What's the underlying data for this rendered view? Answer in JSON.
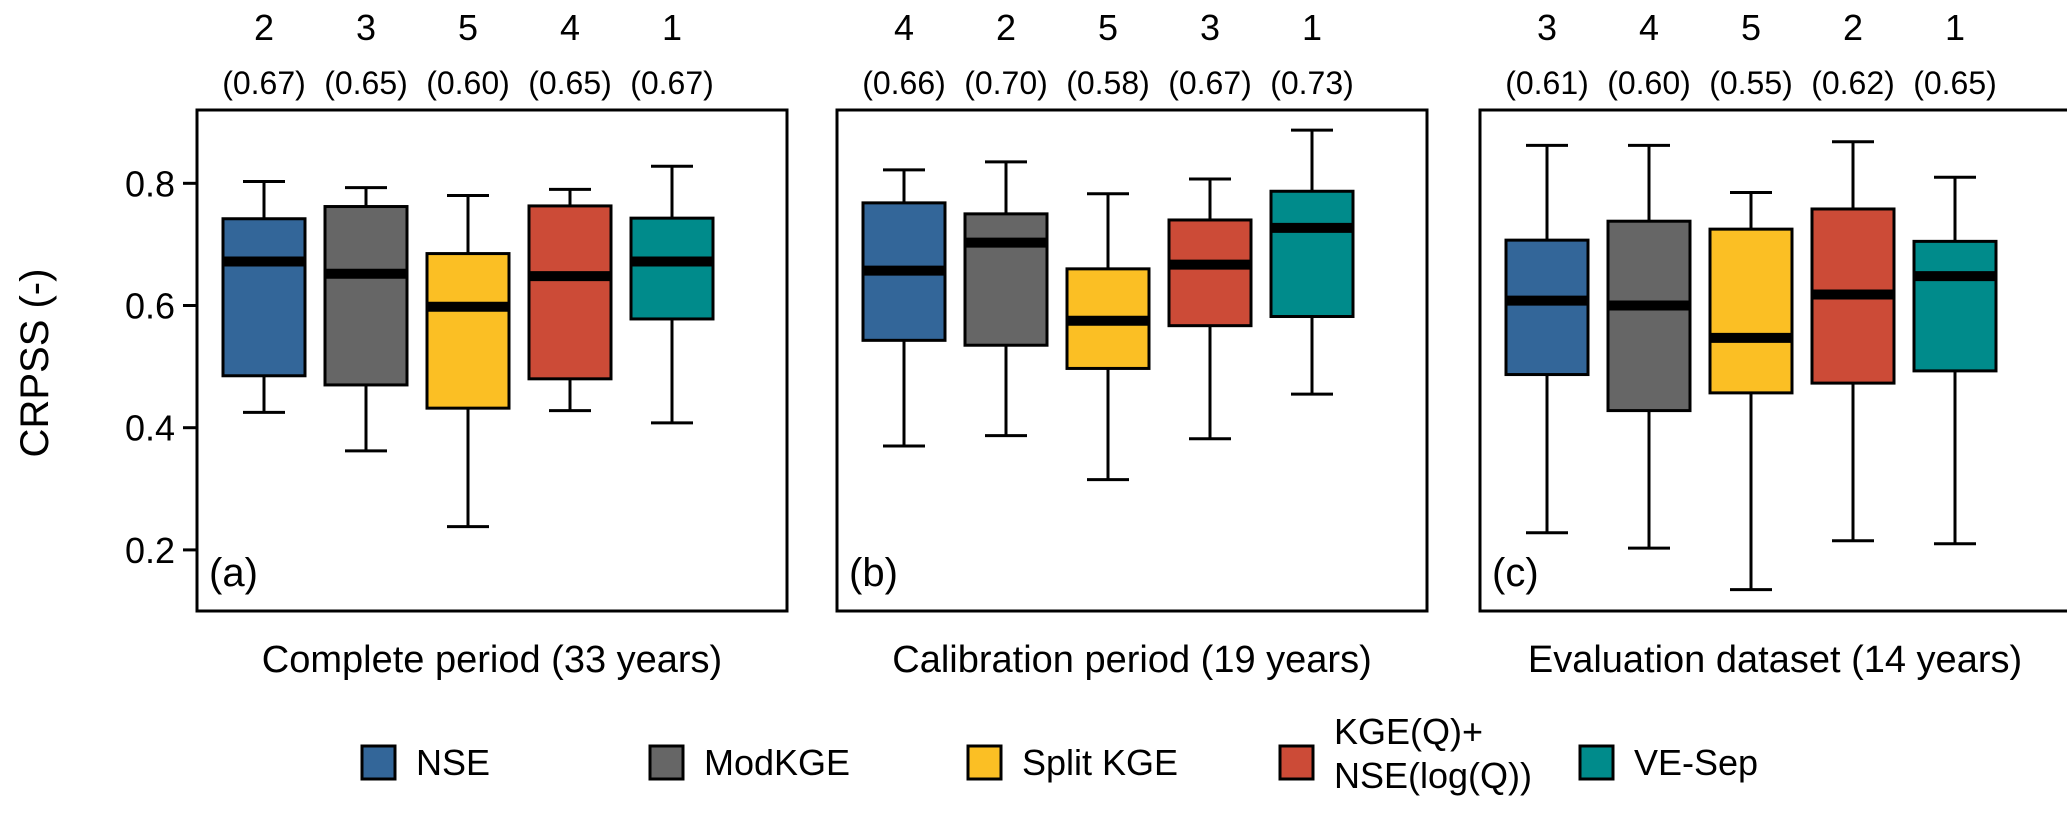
{
  "ylabel": "CRPSS (-)",
  "legend": [
    {
      "label": "NSE",
      "color": "#336699"
    },
    {
      "label": "ModKGE",
      "color": "#666666"
    },
    {
      "label": "Split KGE",
      "color": "#FBBF24"
    },
    {
      "label": "KGE(Q)+\nNSE(log(Q))",
      "color": "#CC4B37"
    },
    {
      "label": "VE-Sep",
      "color": "#008B8B"
    }
  ],
  "chart_data": [
    {
      "type": "boxplot",
      "panel_tag": "(a)",
      "xlabel": "Complete period (33 years)",
      "ylabel": "CRPSS (-)",
      "ylim": [
        0.1,
        0.92
      ],
      "yticks": [
        0.2,
        0.4,
        0.6,
        0.8
      ],
      "categories": [
        "NSE",
        "ModKGE",
        "Split KGE",
        "KGE(Q)+NSE(log(Q))",
        "VE-Sep"
      ],
      "ranks": [
        "2",
        "3",
        "5",
        "4",
        "1"
      ],
      "medians_label": [
        "(0.67)",
        "(0.65)",
        "(0.60)",
        "(0.65)",
        "(0.67)"
      ],
      "boxes": [
        {
          "min": 0.425,
          "q1": 0.485,
          "median": 0.672,
          "q3": 0.742,
          "max": 0.803
        },
        {
          "min": 0.362,
          "q1": 0.47,
          "median": 0.652,
          "q3": 0.762,
          "max": 0.793
        },
        {
          "min": 0.238,
          "q1": 0.432,
          "median": 0.598,
          "q3": 0.685,
          "max": 0.78
        },
        {
          "min": 0.428,
          "q1": 0.48,
          "median": 0.648,
          "q3": 0.763,
          "max": 0.79
        },
        {
          "min": 0.408,
          "q1": 0.578,
          "median": 0.672,
          "q3": 0.743,
          "max": 0.828
        }
      ]
    },
    {
      "type": "boxplot",
      "panel_tag": "(b)",
      "xlabel": "Calibration period (19 years)",
      "ylabel": "CRPSS (-)",
      "ylim": [
        0.1,
        0.92
      ],
      "yticks": [
        0.2,
        0.4,
        0.6,
        0.8
      ],
      "categories": [
        "NSE",
        "ModKGE",
        "Split KGE",
        "KGE(Q)+NSE(log(Q))",
        "VE-Sep"
      ],
      "ranks": [
        "4",
        "2",
        "5",
        "3",
        "1"
      ],
      "medians_label": [
        "(0.66)",
        "(0.70)",
        "(0.58)",
        "(0.67)",
        "(0.73)"
      ],
      "boxes": [
        {
          "min": 0.37,
          "q1": 0.543,
          "median": 0.657,
          "q3": 0.768,
          "max": 0.822
        },
        {
          "min": 0.387,
          "q1": 0.535,
          "median": 0.703,
          "q3": 0.75,
          "max": 0.835
        },
        {
          "min": 0.315,
          "q1": 0.497,
          "median": 0.575,
          "q3": 0.66,
          "max": 0.783
        },
        {
          "min": 0.382,
          "q1": 0.567,
          "median": 0.667,
          "q3": 0.74,
          "max": 0.807
        },
        {
          "min": 0.455,
          "q1": 0.582,
          "median": 0.727,
          "q3": 0.787,
          "max": 0.887
        }
      ]
    },
    {
      "type": "boxplot",
      "panel_tag": "(c)",
      "xlabel": "Evaluation dataset (14 years)",
      "ylabel": "CRPSS (-)",
      "ylim": [
        0.1,
        0.92
      ],
      "yticks": [
        0.2,
        0.4,
        0.6,
        0.8
      ],
      "categories": [
        "NSE",
        "ModKGE",
        "Split KGE",
        "KGE(Q)+NSE(log(Q))",
        "VE-Sep"
      ],
      "ranks": [
        "3",
        "4",
        "5",
        "2",
        "1"
      ],
      "medians_label": [
        "(0.61)",
        "(0.60)",
        "(0.55)",
        "(0.62)",
        "(0.65)"
      ],
      "boxes": [
        {
          "min": 0.228,
          "q1": 0.487,
          "median": 0.608,
          "q3": 0.707,
          "max": 0.862
        },
        {
          "min": 0.203,
          "q1": 0.428,
          "median": 0.6,
          "q3": 0.738,
          "max": 0.862
        },
        {
          "min": 0.135,
          "q1": 0.457,
          "median": 0.547,
          "q3": 0.725,
          "max": 0.785
        },
        {
          "min": 0.215,
          "q1": 0.473,
          "median": 0.618,
          "q3": 0.758,
          "max": 0.868
        },
        {
          "min": 0.21,
          "q1": 0.493,
          "median": 0.648,
          "q3": 0.705,
          "max": 0.81
        }
      ]
    }
  ]
}
